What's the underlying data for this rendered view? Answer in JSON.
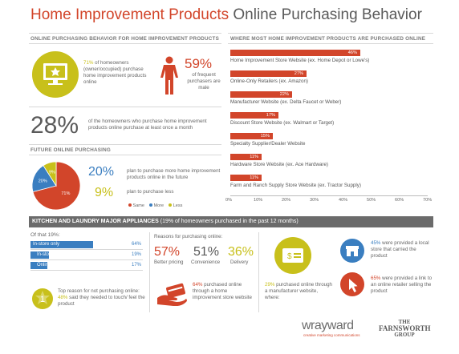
{
  "title": {
    "part1": "Home Improvement Products",
    "part2": "Online Purchasing Behavior"
  },
  "colors": {
    "red": "#d2452a",
    "yellow": "#c8c01b",
    "blue": "#3a7ec0",
    "gray": "#6b6b6b"
  },
  "behavior": {
    "heading": "ONLINE PURCHASING BEHAVIOR FOR HOME IMPROVEMENT PRODUCTS",
    "stat1_pct": "71%",
    "stat1_text": "of homeowners (owner/occupied) purchase home improvement products online",
    "stat2_pct": "59%",
    "stat2_text": "of frequent purchasers are male",
    "stat3_pct": "28%",
    "stat3_text": "of the homeowners who purchase home improvement products online purchase at least once a month"
  },
  "future": {
    "heading": "FUTURE ONLINE PURCHASING",
    "more_pct": "20%",
    "more_text": "plan to purchase more home improvement products online in the future",
    "less_pct": "9%",
    "less_text": "plan to purchase less",
    "legend": [
      "Same",
      "More",
      "Less"
    ]
  },
  "where": {
    "heading": "WHERE MOST HOME IMPROVEMENT PRODUCTS ARE PURCHASED ONLINE",
    "xticks": [
      "0%",
      "10%",
      "20%",
      "30%",
      "40%",
      "50%",
      "60%",
      "70%"
    ]
  },
  "chart_data": [
    {
      "type": "bar",
      "title": "WHERE MOST HOME IMPROVEMENT PRODUCTS ARE PURCHASED ONLINE",
      "categories": [
        "Home Improvement Store Website (ex. Home Depot or Lowe's)",
        "Online-Only Retailers (ex. Amazon)",
        "Manufacturer Website (ex. Delta Faucet or Weber)",
        "Discount Store Website (ex. Walmart or Target)",
        "Specialty Supplier/Dealer Website",
        "Hardware Store Website (ex. Ace Hardware)",
        "Farm and Ranch Supply Store Website (ex. Tractor Supply)"
      ],
      "values": [
        46,
        27,
        22,
        17,
        15,
        11,
        11
      ],
      "value_labels": [
        "46%",
        "27%",
        "22%",
        "17%",
        "15%",
        "11%",
        "11%"
      ],
      "xlim": [
        0,
        70
      ],
      "orientation": "horizontal"
    },
    {
      "type": "pie",
      "title": "FUTURE ONLINE PURCHASING",
      "categories": [
        "Same",
        "More",
        "Less"
      ],
      "values": [
        71,
        20,
        9
      ],
      "value_labels": [
        "71%",
        "20%",
        "9%"
      ]
    },
    {
      "type": "bar",
      "title": "Of that 19%:",
      "categories": [
        "In-store only",
        "In-store and online",
        "Online only"
      ],
      "values": [
        64,
        19,
        17
      ],
      "value_labels": [
        "64%",
        "19%",
        "17%"
      ],
      "orientation": "horizontal"
    }
  ],
  "kitchen": {
    "band_bold": "KITCHEN AND LAUNDRY MAJOR APPLIANCES",
    "band_light": "(19% of homeowners purchased in the past 12 months)",
    "of_that": "Of that 19%:",
    "top_reason": "Top reason for not purchasing online:",
    "top_reason_pct": "48%",
    "top_reason_text": "said they needed to touch/ feel the product",
    "reasons_heading": "Reasons for purchasing online:",
    "reasons": [
      {
        "pct": "57%",
        "label": "Better pricing"
      },
      {
        "pct": "51%",
        "label": "Convenience"
      },
      {
        "pct": "36%",
        "label": "Delivery"
      }
    ],
    "store_pct": "64%",
    "store_text": "purchased online through a home improvement store website",
    "mfr_pct": "29%",
    "mfr_text": "purchased online through a manufacturer website, where:",
    "local_pct": "45%",
    "local_text": "were provided a local store that carried the product",
    "link_pct": "65%",
    "link_text": "were provided a link to an online retailer selling the product"
  },
  "footer": {
    "logo1": "wrayward",
    "logo1_sub": "creative marketing communications",
    "logo2_line1": "THE",
    "logo2_line2": "FARNSWORTH",
    "logo2_line3": "GROUP"
  }
}
